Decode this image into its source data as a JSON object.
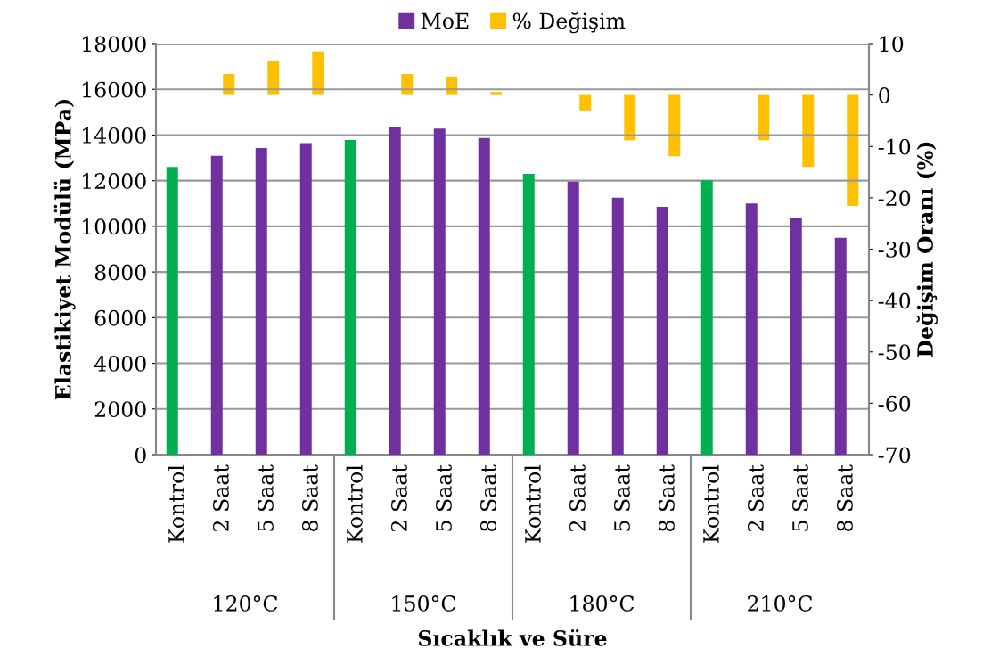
{
  "chart_data": {
    "type": "bar",
    "xlabel": "Sıcaklık ve Süre",
    "ylabel": "Elastikiyet Modülü (MPa)",
    "y2label": "Değişim Oranı (%)",
    "categories": [
      "Kontrol",
      "2 Saat",
      "5 Saat",
      "8 Saat",
      "Kontrol",
      "2 Saat",
      "5 Saat",
      "8 Saat",
      "Kontrol",
      "2 Saat",
      "5 Saat",
      "8 Saat",
      "Kontrol",
      "2 Saat",
      "5 Saat",
      "8 Saat"
    ],
    "series": [
      {
        "name": "MoE",
        "color": "#7030a0",
        "colors": [
          "#00b050",
          "#7030a0",
          "#7030a0",
          "#7030a0",
          "#00b050",
          "#7030a0",
          "#7030a0",
          "#7030a0",
          "#00b050",
          "#7030a0",
          "#7030a0",
          "#7030a0",
          "#00b050",
          "#7030a0",
          "#7030a0",
          "#7030a0"
        ],
        "values": [
          12600,
          13090,
          13430,
          13650,
          13780,
          14340,
          14280,
          13870,
          12300,
          11960,
          11250,
          10850,
          12020,
          11000,
          10360,
          9500
        ]
      },
      {
        "name": "% Değişim",
        "color": "#ffc000",
        "axis": "y2",
        "values": [
          null,
          4.1,
          6.7,
          8.5,
          null,
          4.1,
          3.6,
          0.6,
          null,
          -3.0,
          -8.8,
          -11.9,
          null,
          -8.8,
          -14.0,
          -21.6
        ]
      }
    ],
    "annotations": [
      "120°C",
      "150°C",
      "180°C",
      "210°C"
    ],
    "ylim": [
      0,
      18000
    ],
    "yticks": [
      0,
      2000,
      4000,
      6000,
      8000,
      10000,
      12000,
      14000,
      16000,
      18000
    ],
    "y2lim": [
      -70,
      10
    ],
    "y2ticks": [
      -70,
      -60,
      -50,
      -40,
      -30,
      -20,
      -10,
      0,
      10
    ],
    "grid": "y",
    "legend": "top"
  }
}
